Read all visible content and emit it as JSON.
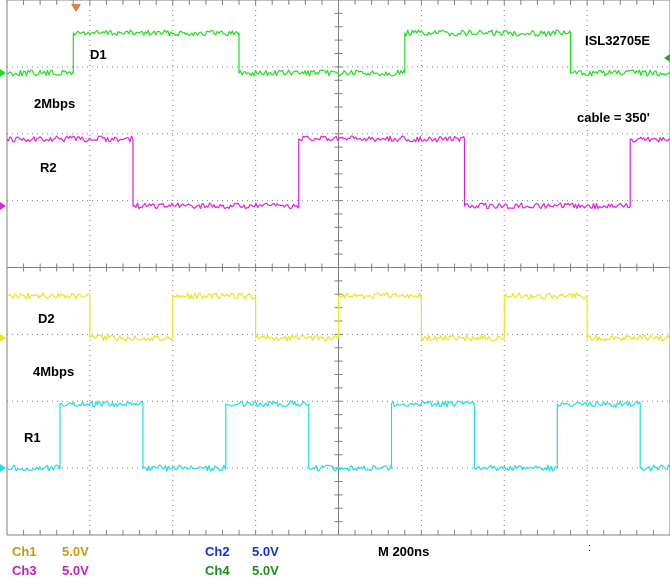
{
  "chart_data": {
    "type": "line",
    "title": "ISL32705E",
    "annotations": {
      "device": "ISL32705E",
      "cable": "cable = 350'",
      "rate_top": "2Mbps",
      "rate_bottom": "4Mbps"
    },
    "x_unit": "ns",
    "x_per_div": 200,
    "xlim": [
      0,
      2000
    ],
    "grid": "on",
    "series": [
      {
        "name": "D1",
        "channel": "Ch4",
        "color": "#22dd22",
        "low": 0,
        "high": 5,
        "edges": [
          [
            0,
            0
          ],
          [
            200,
            5
          ],
          [
            700,
            0
          ],
          [
            1200,
            5
          ],
          [
            1700,
            0
          ]
        ]
      },
      {
        "name": "R2",
        "channel": "Ch3",
        "color": "#dd22dd",
        "low": 0,
        "high": 5,
        "edges": [
          [
            0,
            5
          ],
          [
            380,
            0
          ],
          [
            880,
            5
          ],
          [
            1380,
            0
          ],
          [
            1880,
            5
          ]
        ]
      },
      {
        "name": "D2",
        "channel": "Ch1",
        "color": "#e6e622",
        "low": 0,
        "high": 5,
        "edges": [
          [
            0,
            5
          ],
          [
            250,
            0
          ],
          [
            500,
            5
          ],
          [
            750,
            0
          ],
          [
            1000,
            5
          ],
          [
            1250,
            0
          ],
          [
            1500,
            5
          ],
          [
            1750,
            0
          ]
        ]
      },
      {
        "name": "R1",
        "channel": "Ch2",
        "color": "#22dddd",
        "low": 0,
        "high": 5,
        "edges": [
          [
            0,
            0
          ],
          [
            160,
            5
          ],
          [
            410,
            0
          ],
          [
            660,
            5
          ],
          [
            910,
            0
          ],
          [
            1160,
            5
          ],
          [
            1410,
            0
          ],
          [
            1660,
            5
          ],
          [
            1910,
            0
          ]
        ]
      }
    ]
  },
  "status": {
    "ch1": {
      "label": "Ch1",
      "value": "5.0V",
      "color": "#c89a00"
    },
    "ch2": {
      "label": "Ch2",
      "value": "5.0V",
      "color": "#1a2fd6"
    },
    "ch3": {
      "label": "Ch3",
      "value": "5.0V",
      "color": "#c020c0"
    },
    "ch4": {
      "label": "Ch4",
      "value": "5.0V",
      "color": "#1a8f1a"
    },
    "timebase": "M 200ns",
    "colon": ":"
  }
}
